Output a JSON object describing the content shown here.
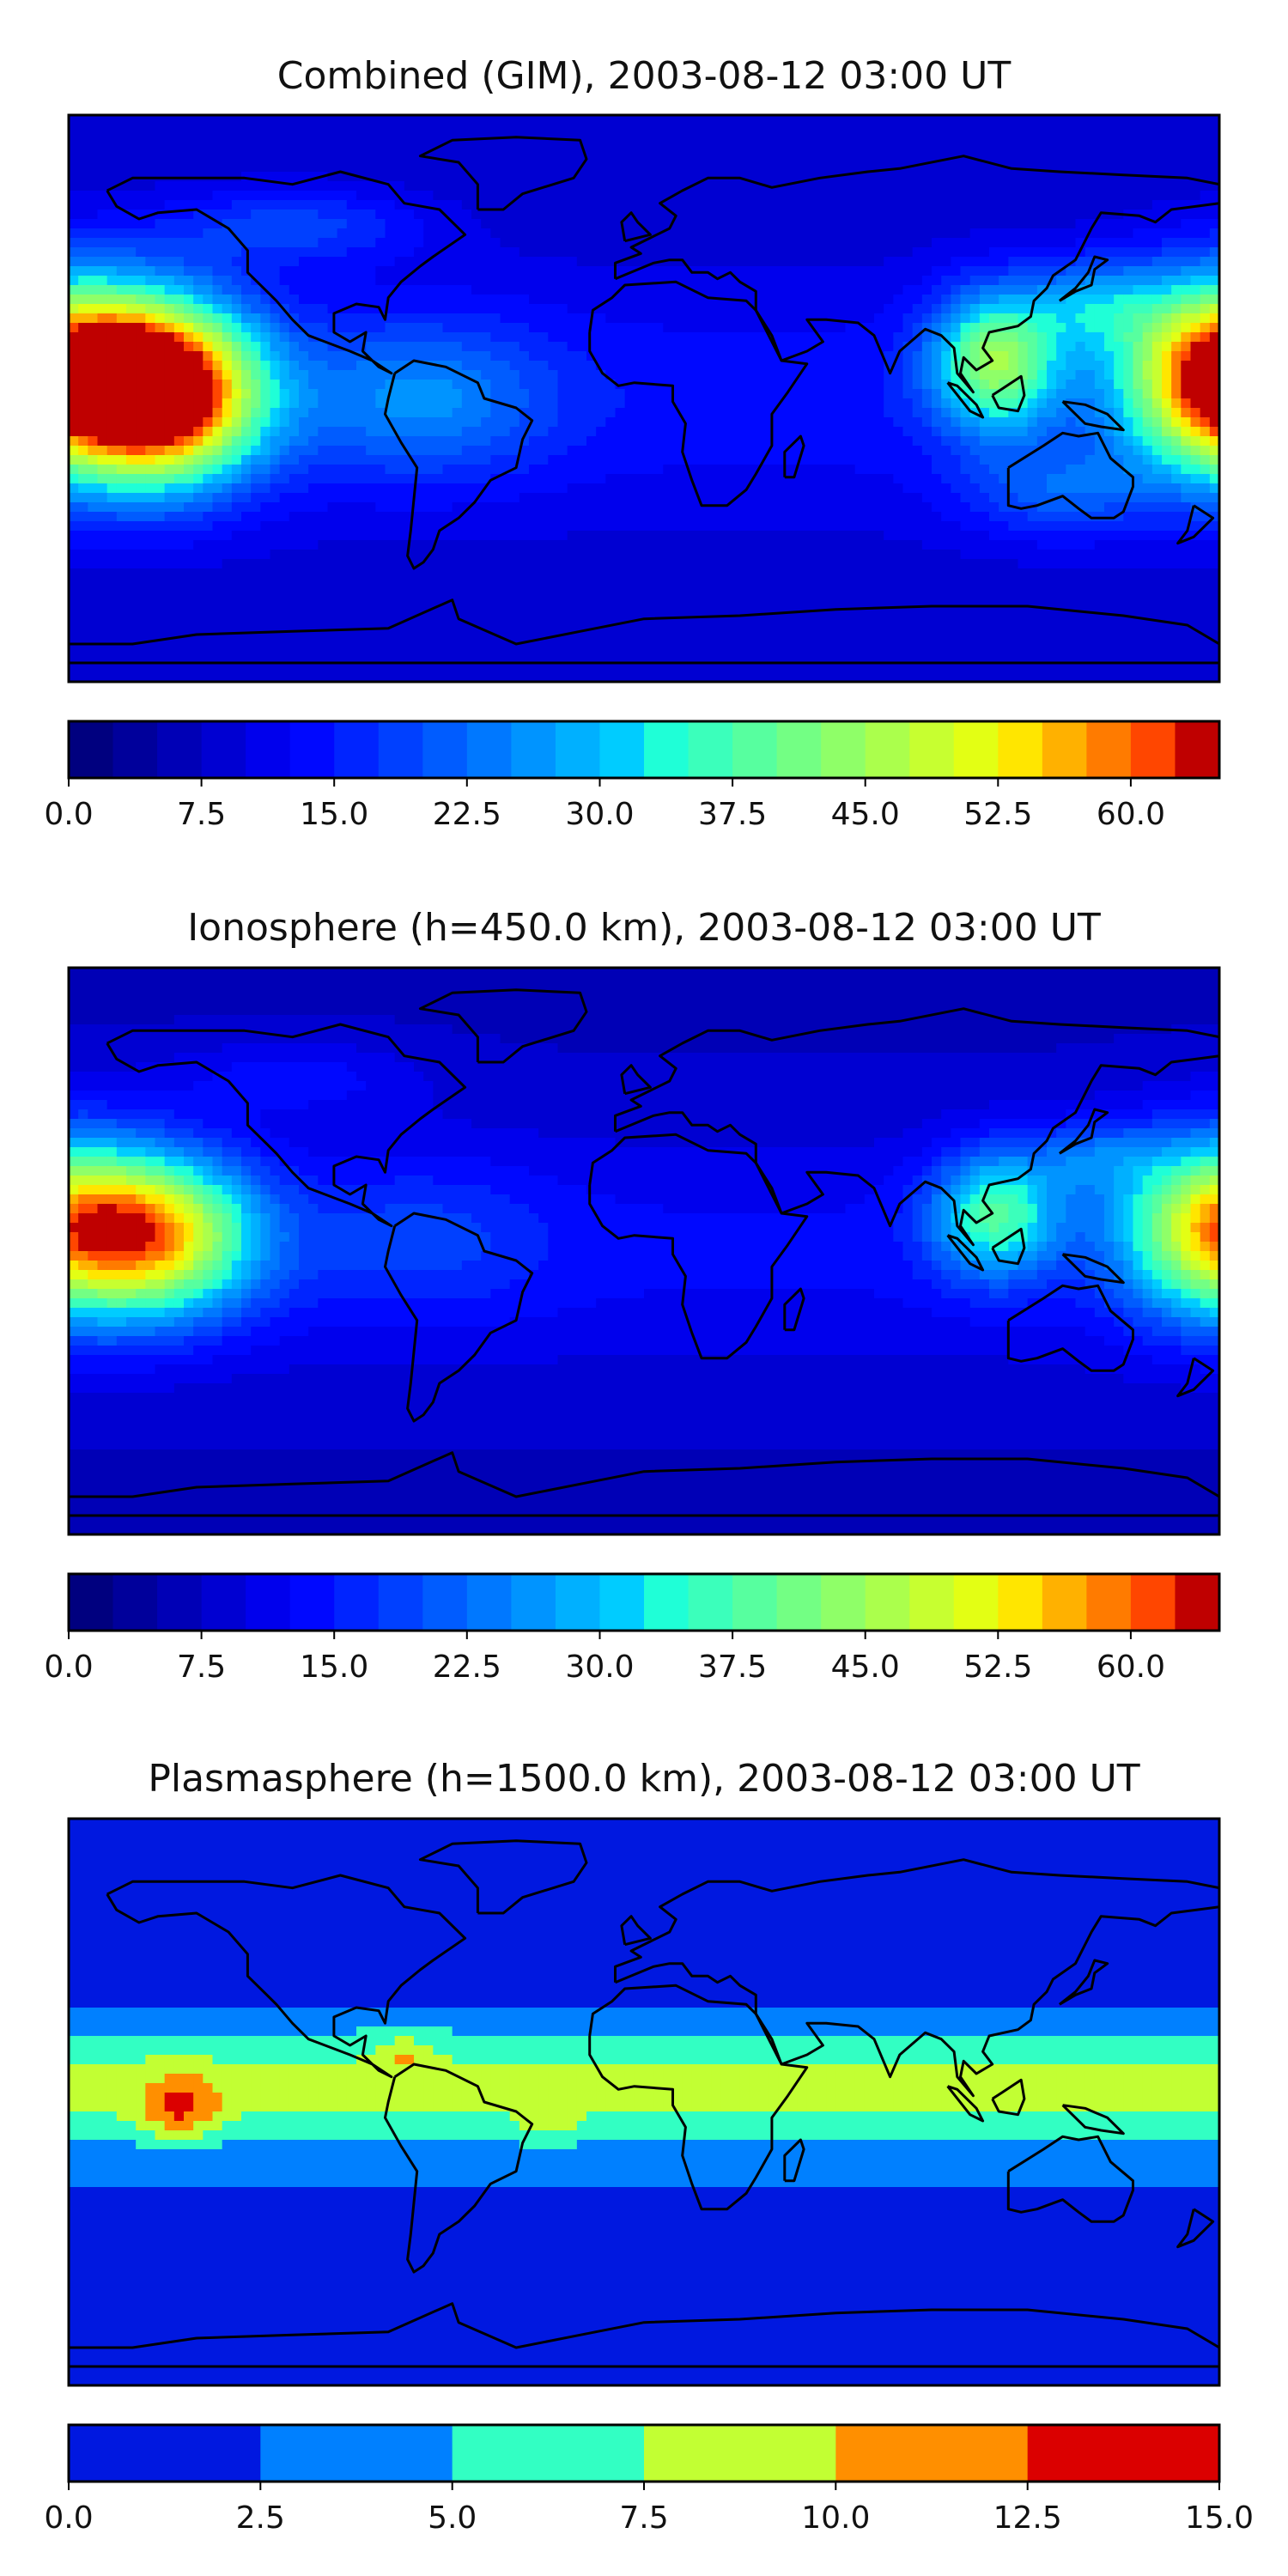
{
  "panels": [
    {
      "title": "Combined (GIM), 2003-08-12 03:00 UT",
      "scale": "a",
      "features": [
        {
          "lon": -150,
          "lat": 2,
          "amp": 58,
          "slon": 30,
          "slat": 28
        },
        {
          "lon": 178,
          "lat": 8,
          "amp": 45,
          "slon": 30,
          "slat": 30
        },
        {
          "lon": 110,
          "lat": 12,
          "amp": 32,
          "slon": 20,
          "slat": 22
        },
        {
          "lon": 140,
          "lat": 30,
          "amp": 14,
          "slon": 20,
          "slat": 14
        },
        {
          "lon": -70,
          "lat": 0,
          "amp": 12,
          "slon": 40,
          "slat": 25
        },
        {
          "lon": -110,
          "lat": 55,
          "amp": 10,
          "slon": 40,
          "slat": 12
        },
        {
          "lon": 130,
          "lat": -30,
          "amp": 10,
          "slon": 30,
          "slat": 15
        }
      ],
      "base": 8,
      "colorbar": {
        "ticks": [
          "0.0",
          "7.5",
          "15.0",
          "22.5",
          "30.0",
          "37.5",
          "45.0",
          "52.5",
          "60.0"
        ],
        "tick_values": [
          0,
          7.5,
          15,
          22.5,
          30,
          37.5,
          45,
          52.5,
          60
        ],
        "range": [
          0,
          65
        ],
        "levels": 26
      }
    },
    {
      "title": "Ionosphere  (h=450.0 km), 2003-08-12 03:00 UT",
      "scale": "a",
      "features": [
        {
          "lon": -150,
          "lat": 5,
          "amp": 36,
          "slon": 30,
          "slat": 25
        },
        {
          "lon": 178,
          "lat": 8,
          "amp": 36,
          "slon": 30,
          "slat": 28
        },
        {
          "lon": 110,
          "lat": 12,
          "amp": 26,
          "slon": 20,
          "slat": 20
        },
        {
          "lon": 140,
          "lat": 30,
          "amp": 10,
          "slon": 20,
          "slat": 12
        },
        {
          "lon": -70,
          "lat": 5,
          "amp": 6,
          "slon": 40,
          "slat": 25
        },
        {
          "lon": -110,
          "lat": 55,
          "amp": 6,
          "slon": 40,
          "slat": 12
        }
      ],
      "base": 7,
      "colorbar": {
        "ticks": [
          "0.0",
          "7.5",
          "15.0",
          "22.5",
          "30.0",
          "37.5",
          "45.0",
          "52.5",
          "60.0"
        ],
        "tick_values": [
          0,
          7.5,
          15,
          22.5,
          30,
          37.5,
          45,
          52.5,
          60
        ],
        "range": [
          0,
          65
        ],
        "levels": 26
      }
    },
    {
      "title": "Plasmasphere (h=1500.0 km), 2003-08-12 03:00 UT",
      "scale": "b",
      "features": [
        {
          "lon": -145,
          "lat": -2,
          "amp": 6,
          "slon": 12,
          "slat": 10
        },
        {
          "lon": -75,
          "lat": 15,
          "amp": 3,
          "slon": 10,
          "slat": 8
        },
        {
          "lon": -30,
          "lat": -5,
          "amp": 2.5,
          "slon": 10,
          "slat": 8
        }
      ],
      "base": 0,
      "colorbar": {
        "ticks": [
          "0.0",
          "2.5",
          "5.0",
          "7.5",
          "10.0",
          "12.5",
          "15.0"
        ],
        "tick_values": [
          0,
          2.5,
          5,
          7.5,
          10,
          12.5,
          15
        ],
        "range": [
          0,
          15
        ],
        "levels": 6
      }
    }
  ],
  "colors": {
    "frame": "#000000",
    "coast": "#000000",
    "scale_a": [
      "#00007f",
      "#00009b",
      "#0000b6",
      "#0000d2",
      "#0000ed",
      "#0008ff",
      "#0024ff",
      "#0040ff",
      "#005cff",
      "#0078ff",
      "#0094ff",
      "#00b0ff",
      "#00ccff",
      "#1fffd7",
      "#3bffbb",
      "#57ff9f",
      "#73ff84",
      "#8fff68",
      "#abff4c",
      "#c7ff30",
      "#e3ff14",
      "#ffe600",
      "#ffb100",
      "#ff7b00",
      "#ff4600",
      "#bf0000"
    ],
    "scale_b": [
      "#0018e0",
      "#0080ff",
      "#32ffc3",
      "#c2ff33",
      "#ff8f00",
      "#db0000"
    ]
  }
}
